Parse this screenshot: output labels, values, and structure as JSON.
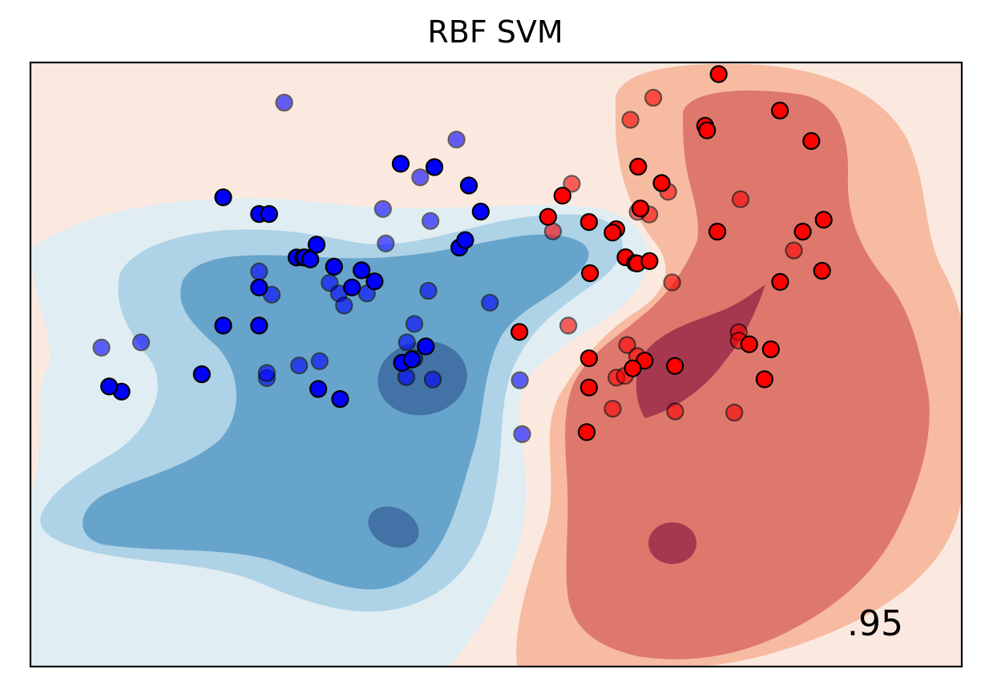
{
  "chart_data": {
    "type": "scatter",
    "title": "RBF SVM",
    "xlabel": "",
    "ylabel": "",
    "xlim": [
      -1.5,
      2.5
    ],
    "ylim": [
      -1.0,
      1.5
    ],
    "grid": false,
    "ticks": false,
    "score_label": ".95",
    "colors": {
      "class_0": "#0000ff",
      "class_1": "#ff0000",
      "bg_far_red": "#fbe9e0",
      "contour_red_1": "#f7bba1",
      "contour_red_2": "#de786d",
      "contour_red_3": "#a5384f",
      "bg_far_blue": "#e0edf3",
      "contour_blue_1": "#aed2e6",
      "contour_blue_2": "#67a4cb",
      "contour_blue_3": "#4272a6",
      "edge": "#000000"
    },
    "decision_regions": [
      {
        "level": "blue-1",
        "color_key": "bg_far_blue"
      },
      {
        "level": "blue-2",
        "color_key": "contour_blue_1"
      },
      {
        "level": "blue-3",
        "color_key": "contour_blue_2"
      },
      {
        "level": "blue-4",
        "color_key": "contour_blue_3"
      },
      {
        "level": "red-1",
        "color_key": "contour_red_1"
      },
      {
        "level": "red-2",
        "color_key": "contour_red_2"
      },
      {
        "level": "red-3",
        "color_key": "contour_red_3"
      }
    ],
    "series": [
      {
        "class": 0,
        "split": "train",
        "color_key": "class_0",
        "points": [
          [
            -0.672,
            0.942
          ],
          [
            -0.518,
            0.873
          ],
          [
            -0.475,
            0.873
          ],
          [
            -0.271,
            0.746
          ],
          [
            -0.357,
            0.693
          ],
          [
            -0.328,
            0.693
          ],
          [
            -0.321,
            0.693
          ],
          [
            -0.298,
            0.685
          ],
          [
            -0.196,
            0.655
          ],
          [
            -0.078,
            0.64
          ],
          [
            -0.119,
            0.569
          ],
          [
            -0.022,
            0.594
          ],
          [
            -0.518,
            0.569
          ],
          [
            -0.518,
            0.411
          ],
          [
            -0.672,
            0.411
          ],
          [
            -0.764,
            0.21
          ],
          [
            -1.109,
            0.138
          ],
          [
            -1.162,
            0.159
          ],
          [
            -0.264,
            0.149
          ],
          [
            -0.17,
            0.107
          ],
          [
            0.096,
            0.257
          ],
          [
            0.138,
            0.271
          ],
          [
            0.198,
            0.325
          ],
          [
            0.342,
            0.734
          ],
          [
            0.367,
            0.765
          ],
          [
            0.434,
            0.883
          ],
          [
            0.383,
            0.991
          ],
          [
            0.235,
            1.067
          ],
          [
            0.09,
            1.081
          ]
        ]
      },
      {
        "class": 0,
        "split": "test",
        "color_key": "class_0",
        "points": [
          [
            -0.41,
            1.334
          ],
          [
            0.014,
            0.894
          ],
          [
            0.218,
            0.844
          ],
          [
            0.026,
            0.751
          ],
          [
            -0.518,
            0.635
          ],
          [
            -0.464,
            0.539
          ],
          [
            -0.215,
            0.588
          ],
          [
            -0.175,
            0.544
          ],
          [
            -0.153,
            0.494
          ],
          [
            -0.055,
            0.544
          ],
          [
            -1.025,
            0.342
          ],
          [
            -1.195,
            0.32
          ],
          [
            -0.485,
            0.194
          ],
          [
            -0.485,
            0.215
          ],
          [
            -0.346,
            0.246
          ],
          [
            -0.258,
            0.264
          ],
          [
            0.228,
            0.188
          ],
          [
            0.149,
            0.418
          ],
          [
            0.209,
            0.555
          ],
          [
            0.117,
            0.342
          ],
          [
            0.174,
            1.025
          ],
          [
            0.33,
            1.181
          ],
          [
            0.473,
            0.506
          ],
          [
            0.602,
            0.185
          ],
          [
            0.612,
            -0.038
          ],
          [
            0.114,
            0.198
          ],
          [
            0.149,
            0.275
          ]
        ]
      },
      {
        "class": 1,
        "split": "train",
        "color_key": "class_1",
        "points": [
          [
            1.456,
            1.452
          ],
          [
            1.719,
            1.301
          ],
          [
            1.398,
            1.238
          ],
          [
            1.406,
            1.219
          ],
          [
            1.854,
            1.175
          ],
          [
            1.11,
            1.069
          ],
          [
            1.211,
            1.001
          ],
          [
            1.12,
            0.896
          ],
          [
            0.785,
            0.949
          ],
          [
            0.723,
            0.861
          ],
          [
            0.899,
            0.84
          ],
          [
            1.016,
            0.81
          ],
          [
            1.0,
            0.796
          ],
          [
            1.45,
            0.8
          ],
          [
            1.907,
            0.849
          ],
          [
            1.817,
            0.8
          ],
          [
            1.9,
            0.638
          ],
          [
            0.903,
            0.628
          ],
          [
            1.056,
            0.694
          ],
          [
            1.097,
            0.67
          ],
          [
            1.106,
            0.668
          ],
          [
            1.159,
            0.678
          ],
          [
            1.72,
            0.592
          ],
          [
            0.6,
            0.385
          ],
          [
            1.587,
            0.334
          ],
          [
            1.68,
            0.313
          ],
          [
            1.138,
            0.266
          ],
          [
            0.899,
            0.276
          ],
          [
            1.087,
            0.234
          ],
          [
            1.268,
            0.244
          ],
          [
            1.653,
            0.189
          ],
          [
            0.899,
            0.155
          ],
          [
            0.889,
            -0.03
          ]
        ]
      },
      {
        "class": 1,
        "split": "test",
        "color_key": "class_1",
        "points": [
          [
            1.175,
            1.354
          ],
          [
            1.077,
            1.263
          ],
          [
            0.825,
            0.998
          ],
          [
            1.158,
            0.871
          ],
          [
            1.239,
            0.965
          ],
          [
            1.55,
            0.934
          ],
          [
            1.108,
            0.882
          ],
          [
            0.744,
            0.801
          ],
          [
            1.779,
            0.722
          ],
          [
            1.256,
            0.59
          ],
          [
            0.81,
            0.411
          ],
          [
            1.063,
            0.331
          ],
          [
            1.106,
            0.285
          ],
          [
            1.017,
            0.196
          ],
          [
            1.542,
            0.384
          ],
          [
            1.542,
            0.349
          ],
          [
            1.053,
            0.203
          ],
          [
            1.001,
            0.067
          ],
          [
            1.269,
            0.056
          ],
          [
            1.523,
            0.051
          ]
        ]
      }
    ]
  }
}
